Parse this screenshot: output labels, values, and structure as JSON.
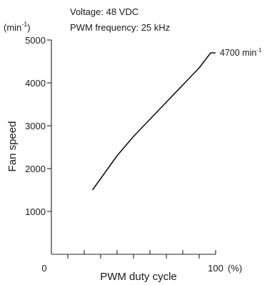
{
  "chart_data": {
    "type": "line",
    "title": "",
    "conditions": [
      "Voltage: 48 VDC",
      "PWM frequency: 25 kHz"
    ],
    "xlabel": "PWM duty cycle",
    "xunit": "(%)",
    "ylabel": "Fan speed",
    "yunit": "(min",
    "yunit_sup": "-1",
    "yunit_close": ")",
    "xlim": [
      0,
      100
    ],
    "ylim": [
      0,
      5000
    ],
    "x_ticks": [
      0,
      10,
      20,
      30,
      40,
      50,
      60,
      70,
      80,
      90,
      100
    ],
    "x_tick_labels": [
      {
        "value": 0,
        "label": "0"
      },
      {
        "value": 100,
        "label": "100"
      }
    ],
    "y_ticks": [
      1000,
      2000,
      3000,
      4000,
      5000
    ],
    "y_tick_labels": [
      "1000",
      "2000",
      "3000",
      "4000",
      "5000"
    ],
    "grid": false,
    "series": [
      {
        "points": [
          [
            25,
            1500
          ],
          [
            40,
            2300
          ],
          [
            50,
            2750
          ],
          [
            60,
            3150
          ],
          [
            70,
            3550
          ],
          [
            80,
            3950
          ],
          [
            90,
            4350
          ],
          [
            95,
            4600
          ],
          [
            97,
            4700
          ],
          [
            100,
            4700
          ]
        ]
      }
    ],
    "annotations": [
      {
        "text": "4700 min",
        "sup": "-1",
        "x": 100,
        "y": 4700
      }
    ]
  }
}
